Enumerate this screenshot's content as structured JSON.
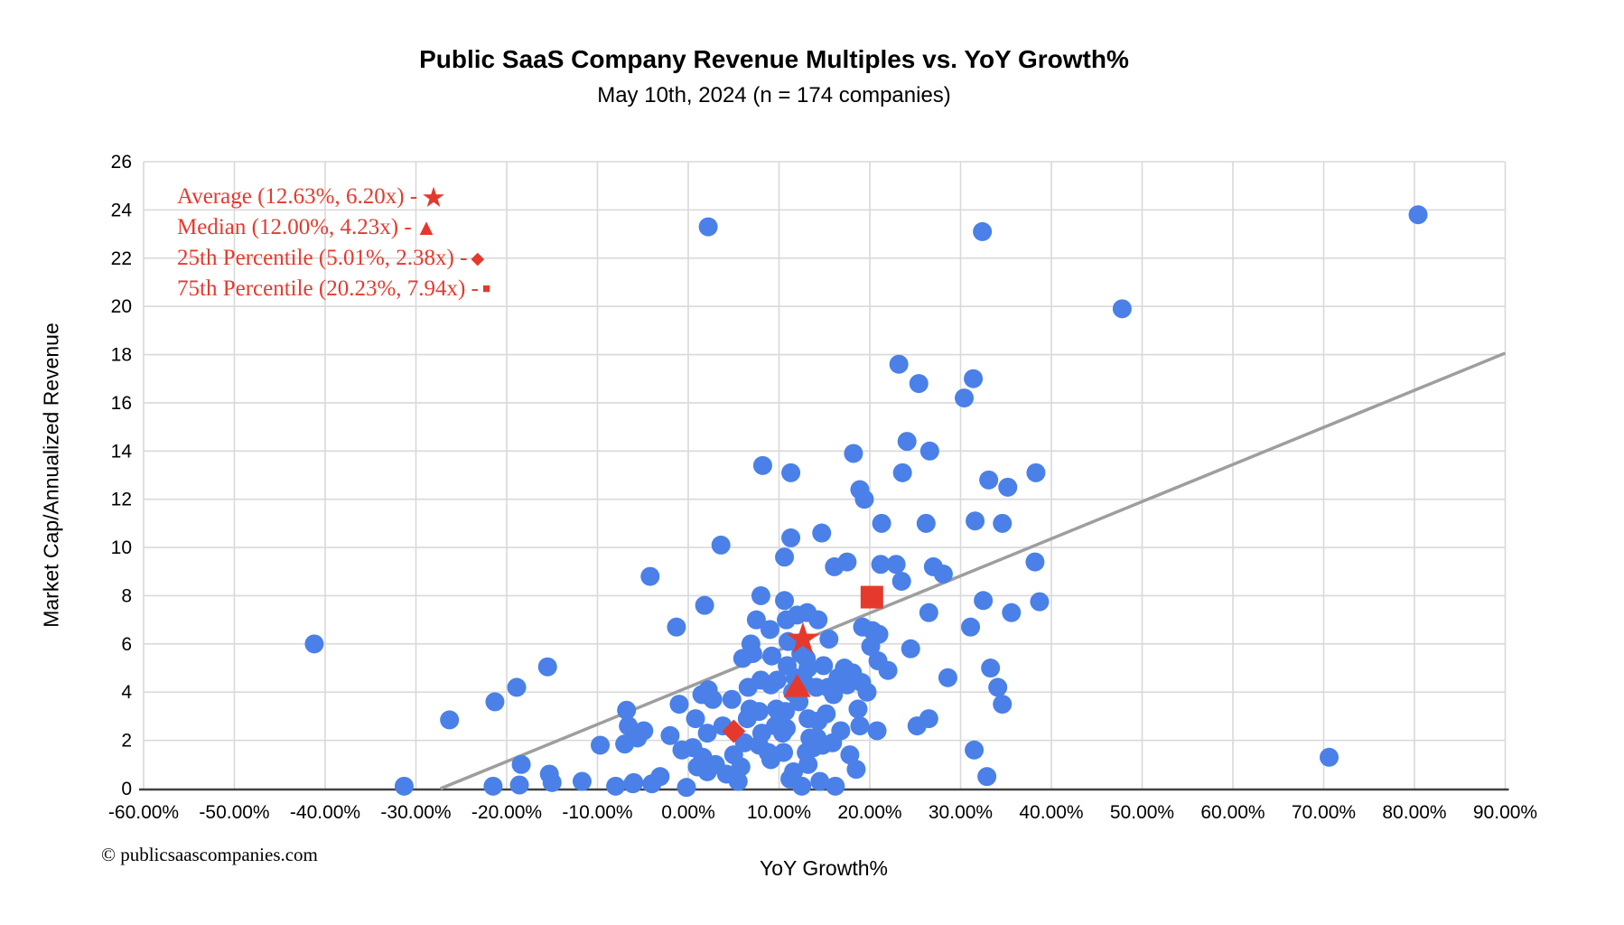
{
  "header": {
    "title": "Public SaaS Company Revenue Multiples vs. YoY Growth%",
    "subtitle": "May 10th, 2024 (n = 174 companies)"
  },
  "footer": {
    "copyright": "© publicsaascompanies.com"
  },
  "axes": {
    "x": {
      "label": "YoY Growth%",
      "tick_values": [
        -60,
        -50,
        -40,
        -30,
        -20,
        -10,
        0,
        10,
        20,
        30,
        40,
        50,
        60,
        70,
        80,
        90
      ],
      "tick_labels": [
        "-60.00%",
        "-50.00%",
        "-40.00%",
        "-30.00%",
        "-20.00%",
        "-10.00%",
        "0.00%",
        "10.00%",
        "20.00%",
        "30.00%",
        "40.00%",
        "50.00%",
        "60.00%",
        "70.00%",
        "80.00%",
        "90.00%"
      ]
    },
    "y": {
      "label": "Market Cap/Annualized Revenue",
      "tick_values": [
        0,
        2,
        4,
        6,
        8,
        10,
        12,
        14,
        16,
        18,
        20,
        22,
        24,
        26
      ]
    }
  },
  "legend": {
    "color": "#e5392e",
    "items": [
      {
        "label": "Average (12.63%, 6.20x) - ",
        "marker": "star"
      },
      {
        "label": "Median (12.00%, 4.23x) - ",
        "marker": "triangle"
      },
      {
        "label": "25th Percentile (5.01%, 2.38x)  - ",
        "marker": "diamond"
      },
      {
        "label": "75th Percentile (20.23%, 7.94x) - ",
        "marker": "square"
      }
    ]
  },
  "chart_data": {
    "type": "scatter",
    "title": "Public SaaS Company Revenue Multiples vs. YoY Growth%",
    "subtitle": "May 10th, 2024 (n = 174 companies)",
    "xlabel": "YoY Growth%",
    "ylabel": "Market Cap/Annualized Revenue",
    "xlim": [
      -60,
      90
    ],
    "ylim": [
      0,
      26
    ],
    "x_unit": "percent",
    "y_unit": "multiple_x",
    "grid": true,
    "point_color": "#4a80e8",
    "marker_color": "#e5392e",
    "n_companies": 174,
    "points": [
      [
        -41.2,
        6.0
      ],
      [
        -31.3,
        0.1
      ],
      [
        -26.3,
        2.85
      ],
      [
        -21.5,
        0.1
      ],
      [
        -21.3,
        3.6
      ],
      [
        -18.9,
        4.2
      ],
      [
        -18.6,
        0.15
      ],
      [
        -18.4,
        1.0
      ],
      [
        -15.5,
        5.05
      ],
      [
        -15.3,
        0.6
      ],
      [
        -15.0,
        0.25
      ],
      [
        -11.7,
        0.3
      ],
      [
        -9.7,
        1.8
      ],
      [
        -8.0,
        0.1
      ],
      [
        -7.0,
        1.85
      ],
      [
        -6.8,
        3.25
      ],
      [
        -6.6,
        2.6
      ],
      [
        -6.1,
        0.2
      ],
      [
        -6.0,
        0.25
      ],
      [
        -5.6,
        2.1
      ],
      [
        -4.9,
        2.4
      ],
      [
        -4.2,
        8.8
      ],
      [
        -4.0,
        0.2
      ],
      [
        -3.1,
        0.5
      ],
      [
        -2.0,
        2.2
      ],
      [
        -1.3,
        6.7
      ],
      [
        -1.0,
        3.5
      ],
      [
        -0.7,
        1.6
      ],
      [
        -0.2,
        0.05
      ],
      [
        0.5,
        1.7
      ],
      [
        0.8,
        2.9
      ],
      [
        1.0,
        0.9
      ],
      [
        1.5,
        3.9
      ],
      [
        1.6,
        1.3
      ],
      [
        1.8,
        7.6
      ],
      [
        2.1,
        2.3
      ],
      [
        2.1,
        0.7
      ],
      [
        2.2,
        23.3
      ],
      [
        2.2,
        4.1
      ],
      [
        2.7,
        3.7
      ],
      [
        3.0,
        1.0
      ],
      [
        3.6,
        10.1
      ],
      [
        3.8,
        2.6
      ],
      [
        4.2,
        0.6
      ],
      [
        4.8,
        3.7
      ],
      [
        5.0,
        1.4
      ],
      [
        5.5,
        0.3
      ],
      [
        5.8,
        0.9
      ],
      [
        6.0,
        5.4
      ],
      [
        6.2,
        1.9
      ],
      [
        6.5,
        2.9
      ],
      [
        6.6,
        4.2
      ],
      [
        6.8,
        3.3
      ],
      [
        6.9,
        6.0
      ],
      [
        7.1,
        5.6
      ],
      [
        7.5,
        7.0
      ],
      [
        7.8,
        3.2
      ],
      [
        7.8,
        1.8
      ],
      [
        8.0,
        8.0
      ],
      [
        8.0,
        4.5
      ],
      [
        8.1,
        2.3
      ],
      [
        8.2,
        13.4
      ],
      [
        8.8,
        1.5
      ],
      [
        9.0,
        6.6
      ],
      [
        9.1,
        4.3
      ],
      [
        9.1,
        1.2
      ],
      [
        9.2,
        5.5
      ],
      [
        9.6,
        2.6
      ],
      [
        9.7,
        3.3
      ],
      [
        9.8,
        4.5
      ],
      [
        10.1,
        2.9
      ],
      [
        10.4,
        2.3
      ],
      [
        10.5,
        1.5
      ],
      [
        10.6,
        9.6
      ],
      [
        10.6,
        7.8
      ],
      [
        10.7,
        3.2
      ],
      [
        10.8,
        7.0
      ],
      [
        10.8,
        2.5
      ],
      [
        10.9,
        5.1
      ],
      [
        11.0,
        6.1
      ],
      [
        11.2,
        0.4
      ],
      [
        11.3,
        13.1
      ],
      [
        11.3,
        10.4
      ],
      [
        11.5,
        4.0
      ],
      [
        11.6,
        0.7
      ],
      [
        11.8,
        4.6
      ],
      [
        12.0,
        7.2
      ],
      [
        12.2,
        3.6
      ],
      [
        12.4,
        5.6
      ],
      [
        12.5,
        0.1
      ],
      [
        12.8,
        4.4
      ],
      [
        13.0,
        5.4
      ],
      [
        13.0,
        1.5
      ],
      [
        13.1,
        7.3
      ],
      [
        13.2,
        5.0
      ],
      [
        13.2,
        2.9
      ],
      [
        13.2,
        1.0
      ],
      [
        13.4,
        2.1
      ],
      [
        13.8,
        1.7
      ],
      [
        14.1,
        4.2
      ],
      [
        14.2,
        2.1
      ],
      [
        14.3,
        7.0
      ],
      [
        14.3,
        2.8
      ],
      [
        14.5,
        0.3
      ],
      [
        14.7,
        10.6
      ],
      [
        14.8,
        1.8
      ],
      [
        14.9,
        5.1
      ],
      [
        15.2,
        3.1
      ],
      [
        15.4,
        4.2
      ],
      [
        15.5,
        6.2
      ],
      [
        15.9,
        1.9
      ],
      [
        16.0,
        3.9
      ],
      [
        16.1,
        9.2
      ],
      [
        16.2,
        0.1
      ],
      [
        16.5,
        4.6
      ],
      [
        16.8,
        2.4
      ],
      [
        17.2,
        5.0
      ],
      [
        17.5,
        9.4
      ],
      [
        17.5,
        4.3
      ],
      [
        17.8,
        1.4
      ],
      [
        18.1,
        4.8
      ],
      [
        18.2,
        13.9
      ],
      [
        18.5,
        0.8
      ],
      [
        18.7,
        3.3
      ],
      [
        18.9,
        12.4
      ],
      [
        18.9,
        2.6
      ],
      [
        19.1,
        4.4
      ],
      [
        19.2,
        6.7
      ],
      [
        19.4,
        12.0
      ],
      [
        19.7,
        4.0
      ],
      [
        20.1,
        5.9
      ],
      [
        20.3,
        6.55
      ],
      [
        20.8,
        2.4
      ],
      [
        20.9,
        5.3
      ],
      [
        21.0,
        6.4
      ],
      [
        21.2,
        9.3
      ],
      [
        21.3,
        11.0
      ],
      [
        22.0,
        4.9
      ],
      [
        22.9,
        9.3
      ],
      [
        23.2,
        17.6
      ],
      [
        23.5,
        8.6
      ],
      [
        23.6,
        13.1
      ],
      [
        24.1,
        14.4
      ],
      [
        24.5,
        5.8
      ],
      [
        25.2,
        2.6
      ],
      [
        25.4,
        16.8
      ],
      [
        26.2,
        11.0
      ],
      [
        26.5,
        7.3
      ],
      [
        26.5,
        2.9
      ],
      [
        26.6,
        14.0
      ],
      [
        27.0,
        9.2
      ],
      [
        28.1,
        8.9
      ],
      [
        28.6,
        4.6
      ],
      [
        30.4,
        16.2
      ],
      [
        31.1,
        6.7
      ],
      [
        31.4,
        17.0
      ],
      [
        31.5,
        1.6
      ],
      [
        31.6,
        11.1
      ],
      [
        32.4,
        23.1
      ],
      [
        32.5,
        7.8
      ],
      [
        32.9,
        0.5
      ],
      [
        33.1,
        12.8
      ],
      [
        33.3,
        5.0
      ],
      [
        34.1,
        4.2
      ],
      [
        34.6,
        11.0
      ],
      [
        34.6,
        3.5
      ],
      [
        35.2,
        12.5
      ],
      [
        35.6,
        7.3
      ],
      [
        38.2,
        9.4
      ],
      [
        38.3,
        13.1
      ],
      [
        38.7,
        7.75
      ],
      [
        47.8,
        19.9
      ],
      [
        70.6,
        1.3
      ],
      [
        80.4,
        23.8
      ]
    ],
    "reference_markers": [
      {
        "name": "average",
        "shape": "star",
        "x": 12.63,
        "y": 6.2,
        "label": "Average (12.63%, 6.20x)"
      },
      {
        "name": "median",
        "shape": "triangle",
        "x": 12.0,
        "y": 4.23,
        "label": "Median (12.00%, 4.23x)"
      },
      {
        "name": "25th-percentile",
        "shape": "diamond",
        "x": 5.01,
        "y": 2.38,
        "label": "25th Percentile (5.01%, 2.38x)"
      },
      {
        "name": "75th-percentile",
        "shape": "square",
        "x": 20.23,
        "y": 7.94,
        "label": "75th Percentile (20.23%, 7.94x)"
      }
    ],
    "trendline": {
      "x1": -27.3,
      "y1": 0,
      "x2": 90,
      "y2": 18.06,
      "color": "#9e9e9e"
    },
    "legend_position": "top-left-inside"
  }
}
